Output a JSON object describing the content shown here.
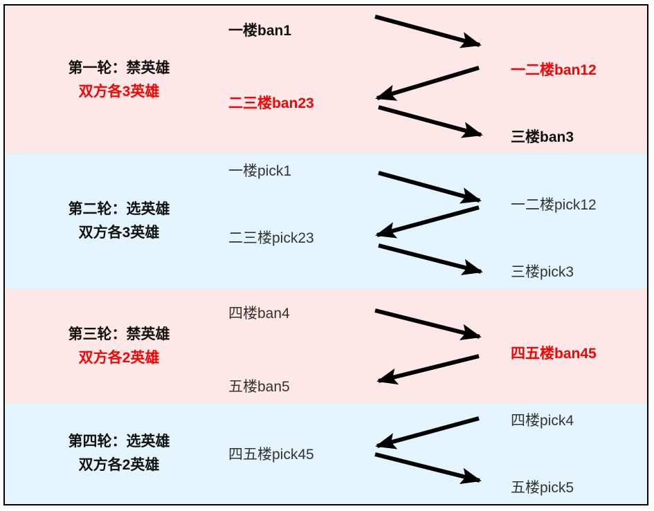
{
  "colors": {
    "ban_band": "#fde7e7",
    "pick_band": "#e3f4fc",
    "highlight": "#ff0000",
    "arrow": "#000000"
  },
  "rounds": [
    {
      "title": "第一轮：禁英雄",
      "subtitle": "双方各3英雄",
      "items": [
        "一楼ban1",
        "一二楼ban12",
        "二三楼ban23",
        "三楼ban3"
      ]
    },
    {
      "title": "第二轮：选英雄",
      "subtitle": "双方各3英雄",
      "items": [
        "一楼pick1",
        "一二楼pick12",
        "二三楼pick23",
        "三楼pick3"
      ]
    },
    {
      "title": "第三轮：禁英雄",
      "subtitle": "双方各2英雄",
      "items": [
        "四楼ban4",
        "四五楼ban45",
        "五楼ban5"
      ]
    },
    {
      "title": "第四轮：选英雄",
      "subtitle": "双方各2英雄",
      "items": [
        "四楼pick4",
        "四五楼pick45",
        "五楼pick5"
      ]
    }
  ]
}
